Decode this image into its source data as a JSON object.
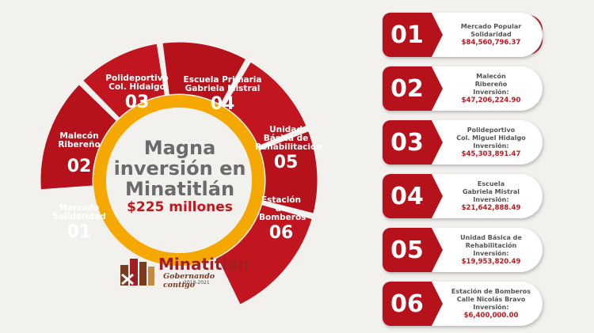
{
  "center": {
    "title": "Magna inversión en Minatitlán",
    "amount": "$225 millones"
  },
  "segments": [
    {
      "name": "Mercado Solidaridad",
      "num": "01"
    },
    {
      "name": "Malecón Ribereño",
      "num": "02"
    },
    {
      "name": "Polideportivo Col. Hidalgo",
      "num": "03"
    },
    {
      "name": "Escuela Primaria Gabriela Mistral",
      "num": "04"
    },
    {
      "name": "Unidad Básica de Rehabilitación",
      "num": "05"
    },
    {
      "name": "Estación de Bomberos",
      "num": "06"
    }
  ],
  "logo": {
    "name": "Minatitlán",
    "slogan": "Gobernando contigo",
    "years": "2018-2021"
  },
  "cards": [
    {
      "num": "01",
      "line1": "Mercado Popular",
      "line2": "Solidaridad",
      "line3": "",
      "amount": "$84,560,796.37"
    },
    {
      "num": "02",
      "line1": "Malecón",
      "line2": "Ribereño",
      "line3": "Inversión:",
      "amount": "$47,206,224.90"
    },
    {
      "num": "03",
      "line1": "Polideportivo",
      "line2": "Col. Miguel Hidalgo",
      "line3": "Inversión:",
      "amount": "$45,303,891.47"
    },
    {
      "num": "04",
      "line1": "Escuela",
      "line2": "Gabriela Mistral",
      "line3": "Inversión:",
      "amount": "$21,642,888.49"
    },
    {
      "num": "05",
      "line1": "Unidad Básica de",
      "line2": "Rehabilitación",
      "line3": "Inversión:",
      "amount": "$19,953,820.49"
    },
    {
      "num": "06",
      "line1": "Estación de Bomberos",
      "line2": "Calle Nicolás Bravo",
      "line3": "Inversión:",
      "amount": "$6,400,000.00"
    }
  ],
  "colors": {
    "red": "#b5121b",
    "red_dark": "#9e0f17",
    "orange": "#f5a800",
    "gray_text": "#6b6b6b"
  }
}
